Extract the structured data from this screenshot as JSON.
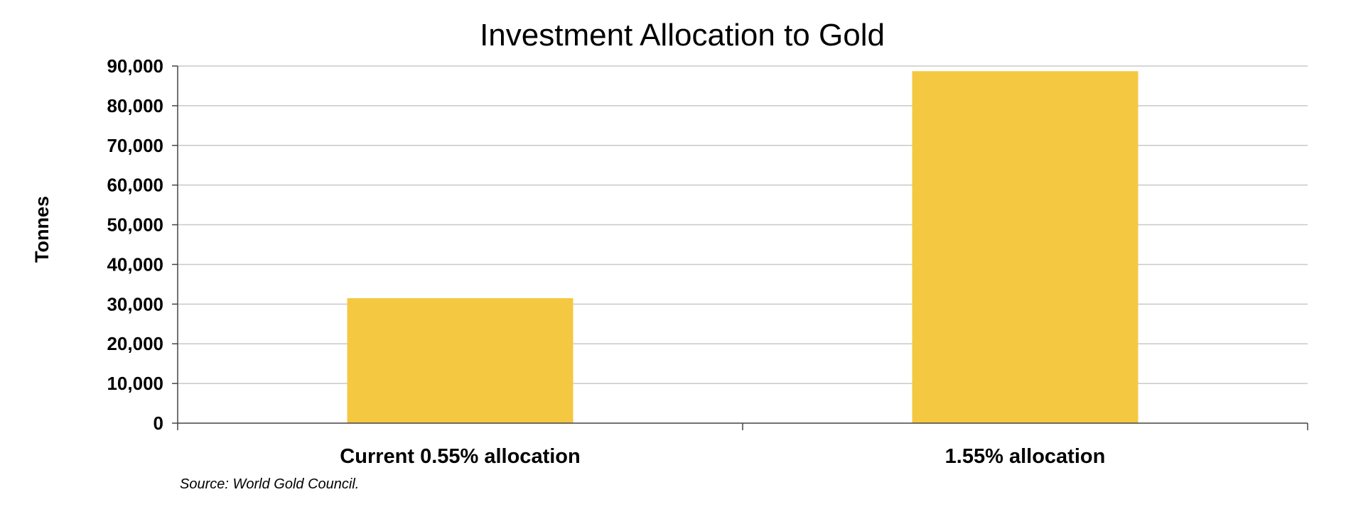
{
  "chart_data": {
    "type": "bar",
    "title": "Investment Allocation to Gold",
    "xlabel": "",
    "ylabel": "Tonnes",
    "categories": [
      "Current 0.55% allocation",
      "1.55% allocation"
    ],
    "series": [
      {
        "values": [
          31500,
          88700
        ]
      }
    ],
    "ylim": [
      0,
      90000
    ],
    "yticks": [
      0,
      10000,
      20000,
      30000,
      40000,
      50000,
      60000,
      70000,
      80000,
      90000
    ],
    "ytick_labels": [
      "0",
      "10,000",
      "20,000",
      "30,000",
      "40,000",
      "50,000",
      "60,000",
      "70,000",
      "80,000",
      "90,000"
    ],
    "grid": true,
    "legend": "none",
    "bar_color": "#F5C842",
    "source": "Source: World Gold Council."
  }
}
